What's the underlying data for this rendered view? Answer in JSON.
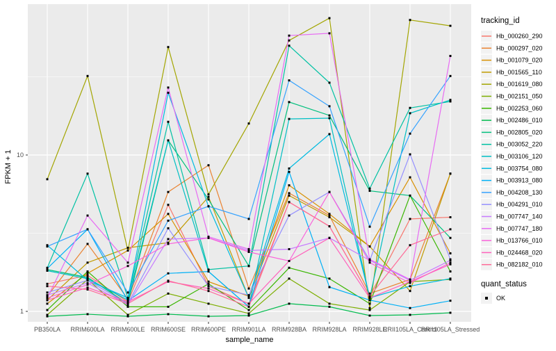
{
  "figure": {
    "ylabel": "FPKM + 1",
    "xlabel": "sample_name",
    "legend_title": "tracking_id",
    "quant_status_title": "quant_status",
    "quant_status_item": "OK"
  },
  "colors": {
    "panel_bg": "#EBEBEB",
    "grid": "#FFFFFF",
    "tick_label": "#4D4D4D",
    "axis_title": "#000000",
    "point": "#000000",
    "legend_key_bg": "#F2F2F2"
  },
  "chart_data": {
    "type": "line",
    "title": "",
    "xlabel": "sample_name",
    "ylabel": "FPKM + 1",
    "y_scale": "log10",
    "y_tick_values": [
      1,
      10
    ],
    "y_minor_values": [
      3.1623,
      31.623
    ],
    "ylim": [
      0.85,
      92
    ],
    "grid": true,
    "legend_position": "right",
    "legend_title": "tracking_id",
    "quant_status": {
      "title": "quant_status",
      "items": [
        "OK"
      ],
      "marker": "black-square"
    },
    "categories": [
      "PB350LA",
      "RRIM600LA",
      "RRIM600LE",
      "RRIM600SE",
      "RRIM600PE",
      "RRIM901LA",
      "RRIM928BA",
      "RRIM928LA",
      "RRIM928LE",
      "RRII105LA_Control",
      "RRII105LA_Stressed"
    ],
    "series": [
      {
        "name": "Hb_000260_290",
        "color": "#F8766D",
        "values": [
          1.5,
          1.7,
          1.15,
          4.8,
          1.45,
          1.12,
          5.0,
          3.5,
          1.25,
          3.9,
          4.0
        ]
      },
      {
        "name": "Hb_000297_020",
        "color": "#EA8331",
        "values": [
          1.25,
          2.7,
          1.2,
          5.8,
          8.6,
          1.4,
          5.7,
          4.1,
          1.3,
          1.6,
          7.6
        ]
      },
      {
        "name": "Hb_001079_020",
        "color": "#D89000",
        "values": [
          1.12,
          1.75,
          2.45,
          4.2,
          1.55,
          1.25,
          6.4,
          4.2,
          2.6,
          7.2,
          2.35
        ]
      },
      {
        "name": "Hb_001565_110",
        "color": "#C09B00",
        "values": [
          1.18,
          2.05,
          2.55,
          2.75,
          5.4,
          1.22,
          5.5,
          4.0,
          2.6,
          1.35,
          7.6
        ]
      },
      {
        "name": "Hb_001619_080",
        "color": "#A3A500",
        "values": [
          7.0,
          32,
          2.45,
          49,
          5.6,
          15.9,
          54,
          75,
          1.05,
          73,
          67
        ]
      },
      {
        "name": "Hb_002151_050",
        "color": "#7CAE00",
        "values": [
          0.95,
          1.6,
          0.95,
          1.3,
          1.12,
          0.97,
          1.62,
          1.12,
          1.02,
          1.55,
          1.6
        ]
      },
      {
        "name": "Hb_002253_060",
        "color": "#39B600",
        "values": [
          1.02,
          1.8,
          1.07,
          1.07,
          1.5,
          1.02,
          1.9,
          1.62,
          1.12,
          5.5,
          1.8
        ]
      },
      {
        "name": "Hb_002486_010",
        "color": "#00BB4E",
        "values": [
          0.93,
          0.96,
          0.93,
          0.96,
          0.93,
          0.94,
          1.12,
          1.07,
          0.94,
          0.95,
          0.98
        ]
      },
      {
        "name": "Hb_002805_020",
        "color": "#00BF7D",
        "values": [
          1.85,
          1.65,
          1.12,
          12.4,
          5.2,
          1.95,
          21.8,
          17.9,
          5.9,
          5.5,
          2.95
        ]
      },
      {
        "name": "Hb_003052_220",
        "color": "#00C1A3",
        "values": [
          1.9,
          7.6,
          1.22,
          16.3,
          1.85,
          1.95,
          50,
          29,
          6.1,
          20,
          22
        ]
      },
      {
        "name": "Hb_003106_120",
        "color": "#00BFC4",
        "values": [
          1.82,
          1.62,
          1.18,
          12.4,
          1.8,
          1.07,
          17,
          17.2,
          1.22,
          18.5,
          22.5
        ]
      },
      {
        "name": "Hb_003754_080",
        "color": "#00BAE0",
        "values": [
          2.65,
          1.58,
          1.22,
          25,
          4.7,
          1.22,
          8.2,
          13.6,
          1.22,
          1.45,
          1.62
        ]
      },
      {
        "name": "Hb_003913_080",
        "color": "#00B0F6",
        "values": [
          1.88,
          3.35,
          1.17,
          1.75,
          1.8,
          1.07,
          7.8,
          1.43,
          1.18,
          1.05,
          1.17
        ]
      },
      {
        "name": "Hb_004208_130",
        "color": "#35A2FF",
        "values": [
          2.6,
          3.35,
          1.32,
          3.8,
          4.7,
          3.9,
          30,
          20.5,
          3.48,
          13.7,
          32
        ]
      },
      {
        "name": "Hb_004291_010",
        "color": "#9590FF",
        "values": [
          1.32,
          1.58,
          1.12,
          3.4,
          1.45,
          1.27,
          4.1,
          5.8,
          2.12,
          10.1,
          2.15
        ]
      },
      {
        "name": "Hb_007747_140",
        "color": "#C77CFF",
        "values": [
          1.27,
          1.52,
          1.1,
          2.9,
          2.95,
          2.45,
          2.5,
          2.95,
          2.12,
          1.58,
          2.12
        ]
      },
      {
        "name": "Hb_007747_180",
        "color": "#E76BF3",
        "values": [
          1.22,
          4.1,
          2.05,
          27,
          3.0,
          2.5,
          58,
          60,
          2.15,
          1.6,
          43
        ]
      },
      {
        "name": "Hb_013766_010",
        "color": "#FA62DB",
        "values": [
          1.22,
          1.48,
          1.95,
          2.7,
          2.95,
          2.4,
          2.1,
          5.8,
          2.05,
          1.52,
          2.05
        ]
      },
      {
        "name": "Hb_024468_020",
        "color": "#FF62BC",
        "values": [
          1.18,
          1.42,
          1.15,
          1.55,
          1.4,
          1.12,
          2.1,
          2.95,
          1.22,
          1.55,
          2.0
        ]
      },
      {
        "name": "Hb_082182_010",
        "color": "#FF6A98",
        "values": [
          1.45,
          1.38,
          1.12,
          1.57,
          1.35,
          1.07,
          5.0,
          3.5,
          1.25,
          2.65,
          3.35
        ]
      }
    ]
  }
}
